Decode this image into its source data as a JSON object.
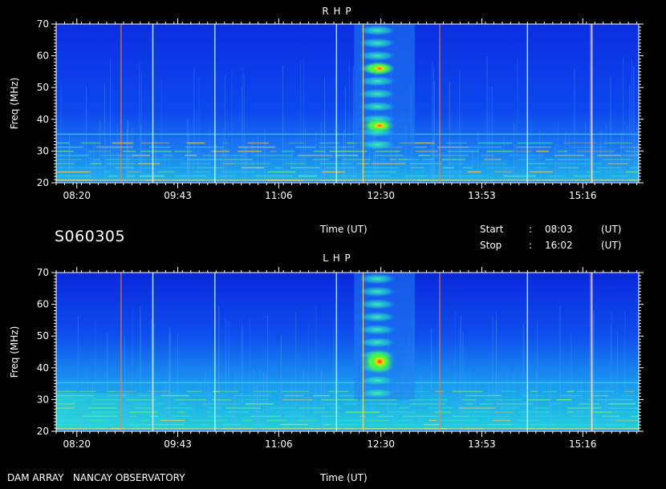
{
  "station_label": "DAM ARRAY   NANCAY OBSERVATORY",
  "session_id": "S060305",
  "time_axis_label": "Time (UT)",
  "start_label": "Start",
  "start_value": "08:03",
  "stop_label": "Stop",
  "stop_value": "16:02",
  "colon": ":",
  "ut_unit": "(UT)",
  "chart_data": [
    {
      "type": "heatmap",
      "title": "R H P",
      "ylabel": "Freq (MHz)",
      "xlabel": "Time (UT)",
      "x_range": [
        "08:03",
        "16:02"
      ],
      "ylim": [
        20,
        70
      ],
      "y_ticks": [
        20,
        30,
        40,
        50,
        60,
        70
      ],
      "x_ticks": [
        "08:20",
        "09:43",
        "11:06",
        "12:30",
        "13:53",
        "15:16"
      ],
      "burst_time_range": [
        "12:08",
        "12:58"
      ],
      "burst_freq_range_mhz": [
        30,
        70
      ],
      "peak_intensity_freq_mhz": [
        38,
        56
      ]
    },
    {
      "type": "heatmap",
      "title": "L H P",
      "ylabel": "Freq (MHz)",
      "xlabel": "Time (UT)",
      "x_range": [
        "08:03",
        "16:02"
      ],
      "ylim": [
        20,
        70
      ],
      "y_ticks": [
        20,
        30,
        40,
        50,
        60,
        70
      ],
      "x_ticks": [
        "08:20",
        "09:43",
        "11:06",
        "12:30",
        "13:53",
        "15:16"
      ],
      "burst_time_range": [
        "12:08",
        "12:58"
      ],
      "burst_freq_range_mhz": [
        30,
        70
      ],
      "peak_intensity_freq_mhz": [
        42
      ]
    }
  ]
}
